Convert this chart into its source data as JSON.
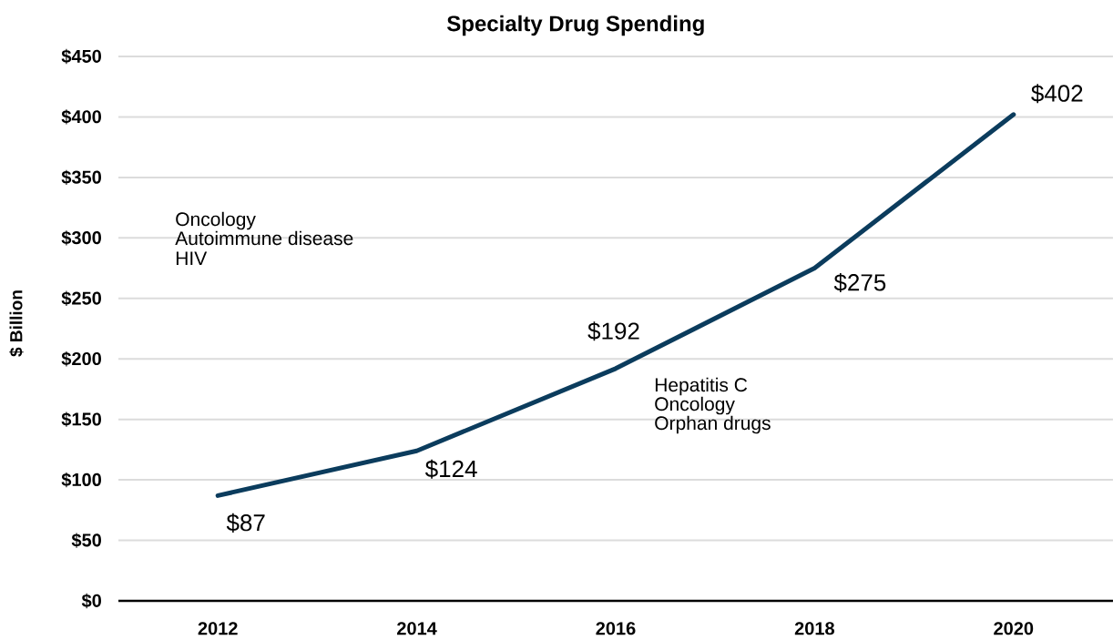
{
  "chart_data": {
    "type": "line",
    "title": "Specialty Drug Spending",
    "ylabel": "$ Billion",
    "categories": [
      "2012",
      "2014",
      "2016",
      "2018",
      "2020"
    ],
    "values": [
      87,
      124,
      192,
      275,
      402
    ],
    "color": "#0b3c5d",
    "value_labels": [
      "$87",
      "$124",
      "$192",
      "$275",
      "$402"
    ],
    "ylim": [
      0,
      450
    ],
    "yticks": [
      {
        "value": 0,
        "label": "$0"
      },
      {
        "value": 50,
        "label": "$50"
      },
      {
        "value": 100,
        "label": "$100"
      },
      {
        "value": 150,
        "label": "$150"
      },
      {
        "value": 200,
        "label": "$200"
      },
      {
        "value": 250,
        "label": "$250"
      },
      {
        "value": 300,
        "label": "$300"
      },
      {
        "value": 350,
        "label": "$350"
      },
      {
        "value": 400,
        "label": "$400"
      },
      {
        "value": 450,
        "label": "$450"
      }
    ],
    "grid": "y",
    "annotations": [
      "Oncology",
      "Autoimmune disease",
      "HIV",
      "Hepatitis C",
      "Oncology",
      "Orphan drugs"
    ]
  }
}
